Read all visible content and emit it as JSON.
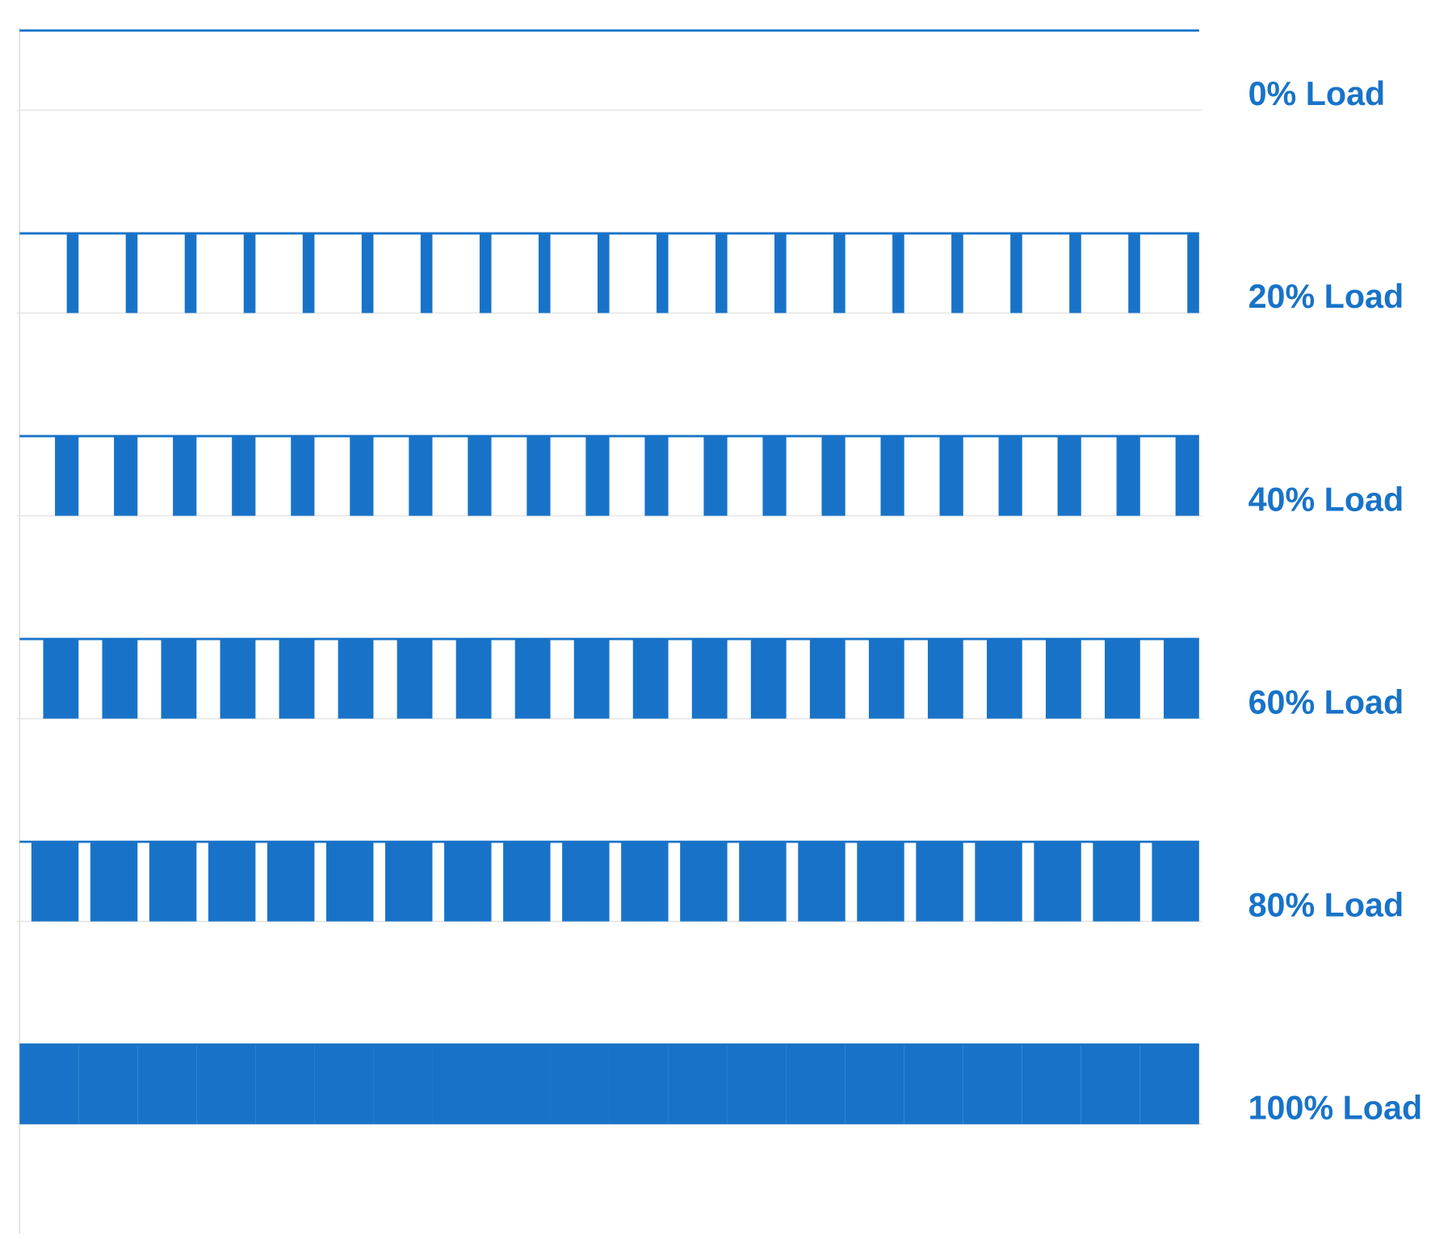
{
  "rows": [
    {
      "value": 0,
      "label": "0% Load"
    },
    {
      "value": 20,
      "label": "20% Load"
    },
    {
      "value": 40,
      "label": "40% Load"
    },
    {
      "value": 60,
      "label": "60% Load"
    },
    {
      "value": 80,
      "label": "80% Load"
    },
    {
      "value": 100,
      "label": "100% Load"
    }
  ],
  "color": "#1873c8"
}
